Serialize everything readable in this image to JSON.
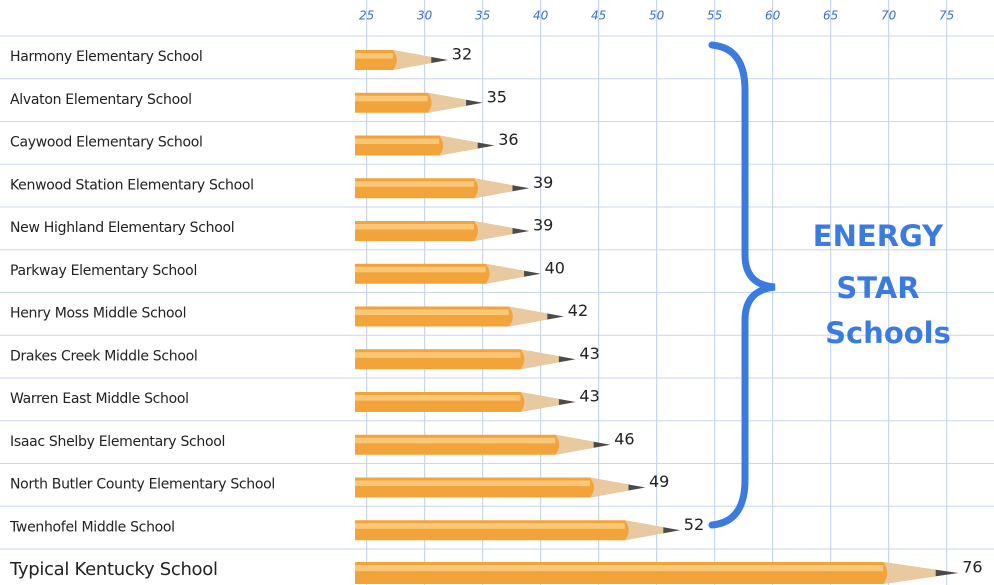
{
  "chart_data": {
    "type": "bar",
    "orientation": "horizontal",
    "categories": [
      "Harmony Elementary School",
      "Alvaton Elementary School",
      "Caywood Elementary School",
      "Kenwood Station Elementary School",
      "New Highland Elementary School",
      "Parkway Elementary School",
      "Henry Moss Middle School",
      "Drakes Creek Middle School",
      "Warren East Middle School",
      "Isaac Shelby Elementary School",
      "North Butler County Elementary School",
      "Twenhofel Middle School",
      "Typical Kentucky School"
    ],
    "values": [
      32,
      35,
      36,
      39,
      39,
      40,
      42,
      43,
      43,
      46,
      49,
      52,
      76
    ],
    "color": "#f2a33a",
    "xlim": [
      24,
      79
    ],
    "xticks": [
      25,
      30,
      35,
      40,
      45,
      50,
      55,
      60,
      65,
      70,
      75
    ],
    "grid": true,
    "annotation": [
      "ENERGY",
      "STAR",
      "Schools"
    ]
  }
}
